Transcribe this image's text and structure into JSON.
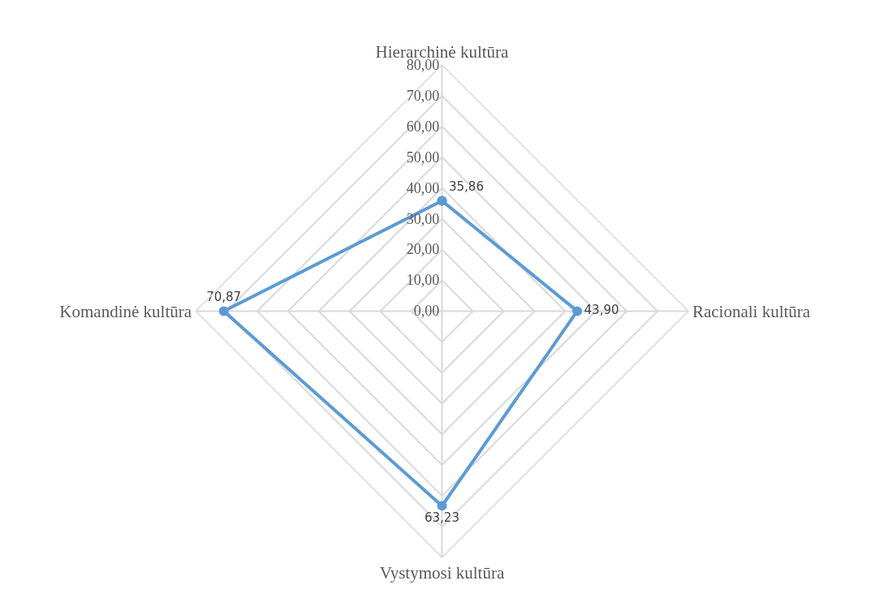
{
  "chart_data": {
    "type": "radar",
    "categories": [
      "Hierarchinė kultūra",
      "Racionali kultūra",
      "Vystymosi kultūra",
      "Komandinė kultūra"
    ],
    "series": [
      {
        "color": "#5b9bd5",
        "values": [
          35.86,
          43.9,
          63.23,
          70.87
        ],
        "value_labels": [
          "35,86",
          "43,90",
          "63,23",
          "70,87"
        ]
      }
    ],
    "ylim": [
      0,
      80
    ],
    "yticks": [
      {
        "value": 0,
        "label": "0,00"
      },
      {
        "value": 10,
        "label": "10,00"
      },
      {
        "value": 20,
        "label": "20,00"
      },
      {
        "value": 30,
        "label": "30,00"
      },
      {
        "value": 40,
        "label": "40,00"
      },
      {
        "value": 50,
        "label": "50,00"
      },
      {
        "value": 60,
        "label": "60,00"
      },
      {
        "value": 70,
        "label": "70,00"
      },
      {
        "value": 80,
        "label": "80,00"
      }
    ],
    "grid": true,
    "marker": "circle",
    "line_style": "solid"
  }
}
